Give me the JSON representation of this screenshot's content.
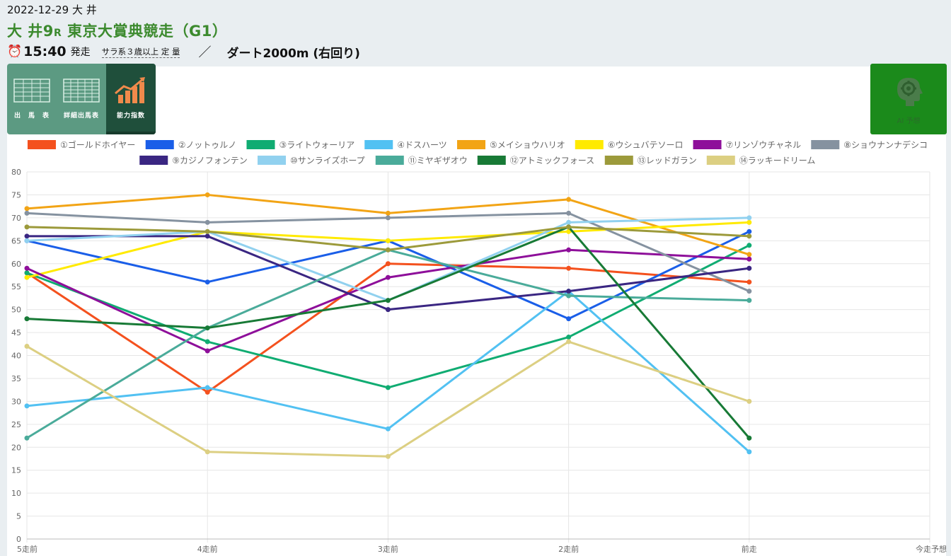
{
  "header": {
    "date_venue": "2022-12-29 大 井",
    "race_num": "大 井9",
    "race_r": "R",
    "race_name": " 東京大賞典競走（G1）",
    "clock_icon": "alarm-clock-icon",
    "time": "15:40",
    "start_label": "発走",
    "race_class": "サラ系３歳以上 定 量",
    "separator": "／",
    "course": "ダート2000m (右回り)"
  },
  "tabs": [
    {
      "label": "出　馬　表",
      "icon": "race-card-table-icon"
    },
    {
      "label": "詳細出馬表",
      "icon": "detailed-race-card-icon"
    },
    {
      "label": "能力指数",
      "icon": "rising-bar-chart-icon"
    }
  ],
  "ai_button": {
    "label": "AI 予想",
    "icon": "head-gear-icon"
  },
  "chart_data": {
    "type": "line",
    "categories": [
      "5走前",
      "4走前",
      "3走前",
      "2走前",
      "前走",
      "今走予想"
    ],
    "ylim": [
      0,
      80
    ],
    "ytick_step": 5,
    "grid": true,
    "legend_position": "top",
    "series": [
      {
        "name": "①ゴールドホイヤー",
        "color": "#f4511e",
        "values": [
          58,
          32,
          60,
          59,
          56,
          null
        ]
      },
      {
        "name": "②ノットゥルノ",
        "color": "#1a5ee8",
        "values": [
          65,
          56,
          65,
          48,
          67,
          null
        ]
      },
      {
        "name": "③ライトウォーリア",
        "color": "#10ac72",
        "values": [
          58,
          43,
          33,
          44,
          64,
          null
        ]
      },
      {
        "name": "④ドスハーツ",
        "color": "#52c1f2",
        "values": [
          29,
          33,
          24,
          54,
          19,
          null
        ]
      },
      {
        "name": "⑤メイショウハリオ",
        "color": "#f2a415",
        "values": [
          72,
          75,
          71,
          74,
          62,
          null
        ]
      },
      {
        "name": "⑥ウシュバテソーロ",
        "color": "#ffea00",
        "values": [
          57,
          67,
          65,
          67,
          69,
          null
        ]
      },
      {
        "name": "⑦リンゾウチャネル",
        "color": "#8e0f9a",
        "values": [
          59,
          41,
          57,
          63,
          61,
          null
        ]
      },
      {
        "name": "⑧ショウナンナデシコ",
        "color": "#8592a0",
        "values": [
          71,
          69,
          70,
          71,
          54,
          null
        ]
      },
      {
        "name": "⑨カジノフォンテン",
        "color": "#3a2682",
        "values": [
          66,
          66,
          50,
          54,
          59,
          null
        ]
      },
      {
        "name": "⑩サンライズホープ",
        "color": "#91d1ef",
        "values": [
          65,
          67,
          52,
          69,
          70,
          null
        ]
      },
      {
        "name": "⑪ミヤギザオウ",
        "color": "#4aab9a",
        "values": [
          22,
          46,
          63,
          53,
          52,
          null
        ]
      },
      {
        "name": "⑫アトミックフォース",
        "color": "#187a36",
        "values": [
          48,
          46,
          52,
          68,
          22,
          null
        ]
      },
      {
        "name": "⑬レッドガラン",
        "color": "#9c9a3b",
        "values": [
          68,
          67,
          63,
          68,
          66,
          null
        ]
      },
      {
        "name": "⑭ラッキードリーム",
        "color": "#dccf82",
        "values": [
          42,
          19,
          18,
          43,
          30,
          null
        ]
      }
    ]
  }
}
